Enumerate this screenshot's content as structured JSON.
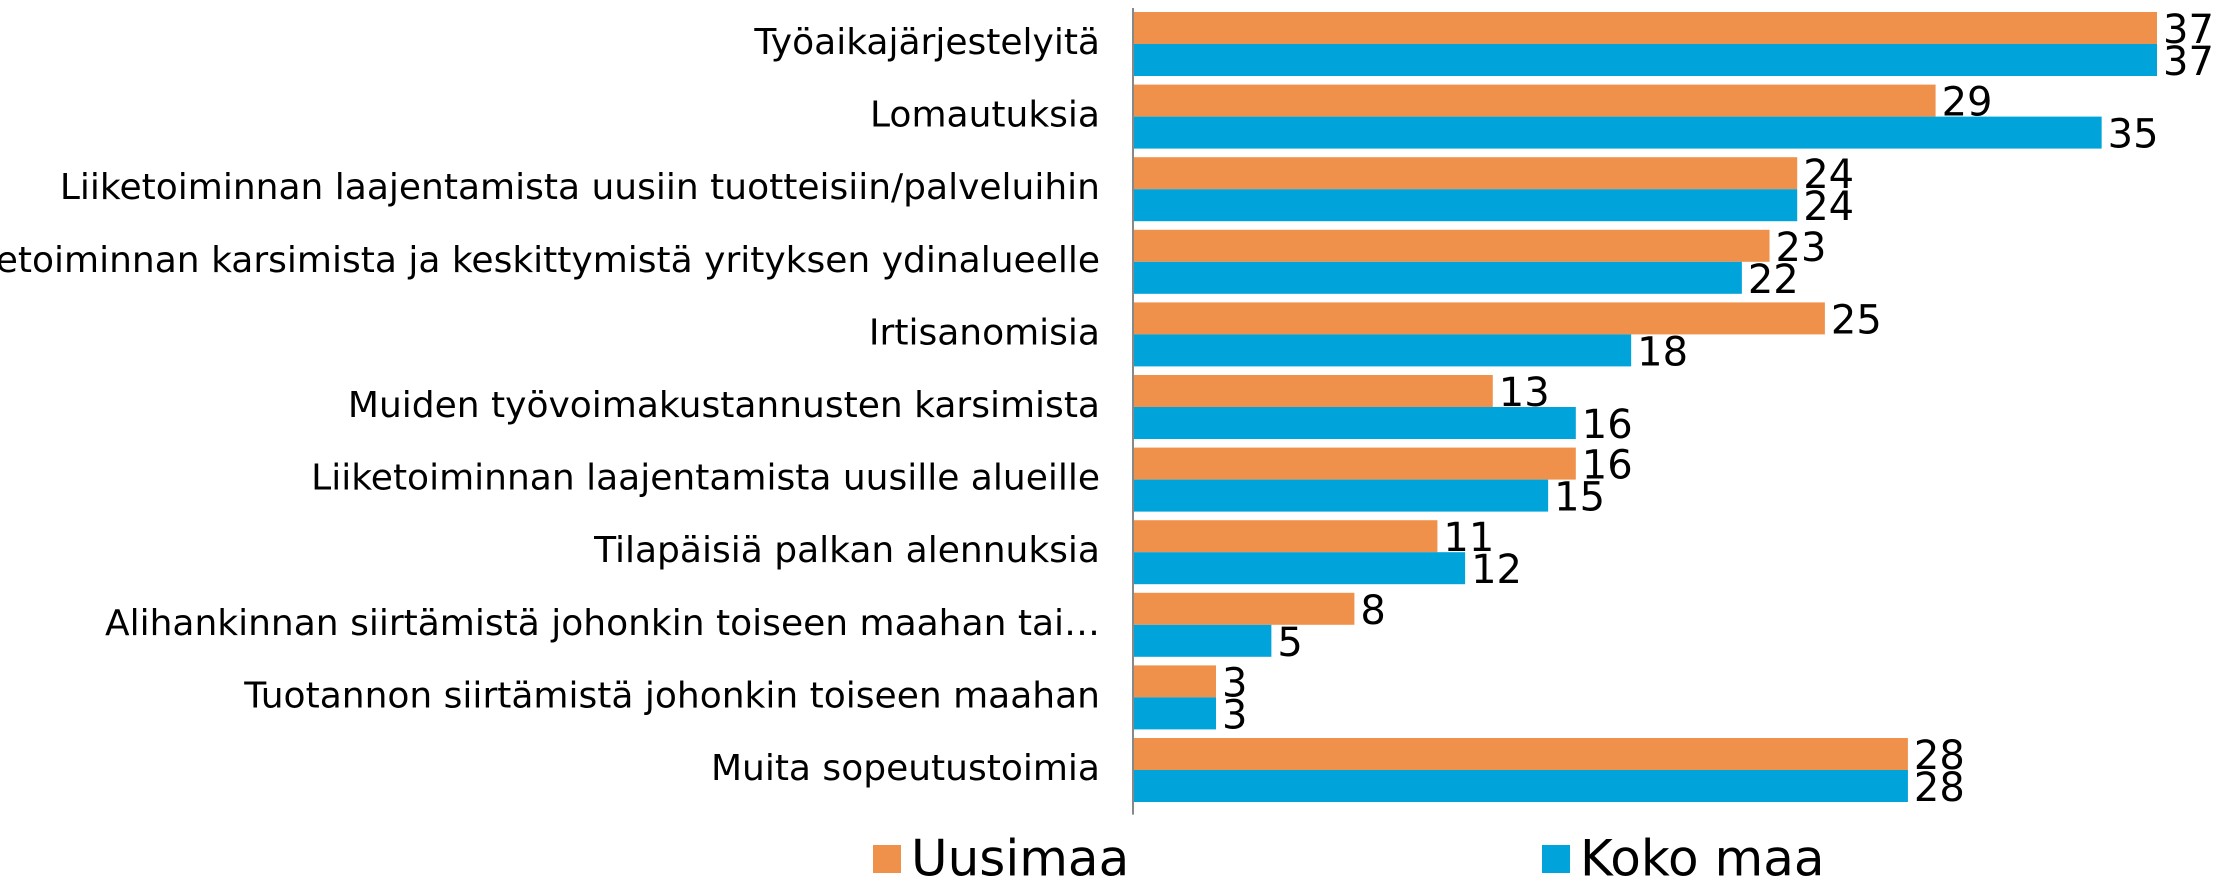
{
  "chart_data": {
    "type": "barh",
    "categories": [
      "Työaikajärjestelyitä",
      "Lomautuksia",
      "Liiketoiminnan laajentamista uusiin tuotteisiin/palveluihin",
      "Liiketoiminnan karsimista ja keskittymistä yrityksen ydinalueelle",
      "Irtisanomisia",
      "Muiden työvoimakustannusten karsimista",
      "Liiketoiminnan laajentamista uusille alueille",
      "Tilapäisiä palkan alennuksia",
      "Alihankinnan siirtämistä johonkin toiseen maahan tai…",
      "Tuotannon siirtämistä johonkin toiseen maahan",
      "Muita sopeutustoimia"
    ],
    "series": [
      {
        "name": "Uusimaa",
        "color": "#f0914b",
        "values": [
          37,
          29,
          24,
          23,
          25,
          13,
          16,
          11,
          8,
          3,
          28
        ]
      },
      {
        "name": "Koko maa",
        "color": "#00a3da",
        "values": [
          37,
          35,
          24,
          22,
          18,
          16,
          15,
          12,
          5,
          3,
          28
        ]
      }
    ],
    "xlim": [
      0,
      37
    ],
    "legend": "bottom"
  }
}
